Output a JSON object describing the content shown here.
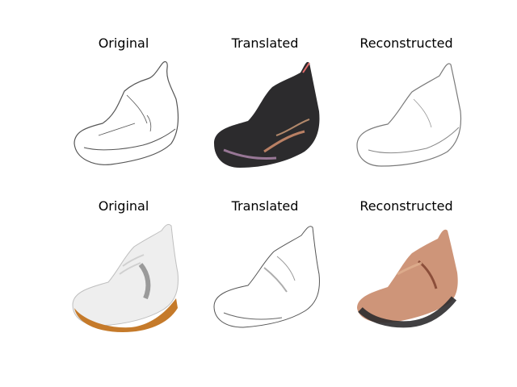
{
  "figure": {
    "rows": [
      {
        "panels": [
          {
            "title": "Original"
          },
          {
            "title": "Translated"
          },
          {
            "title": "Reconstructed"
          }
        ]
      },
      {
        "panels": [
          {
            "title": "Original"
          },
          {
            "title": "Translated"
          },
          {
            "title": "Reconstructed"
          }
        ]
      }
    ]
  },
  "colors": {
    "sketch_line": "#555555",
    "translated_dark": "#2c2b2d",
    "sole_orange": "#c57a2a",
    "shoe_white": "#eeeeee",
    "grey_accent": "#9a9a9a",
    "recon_warm": "#c98a6a"
  }
}
